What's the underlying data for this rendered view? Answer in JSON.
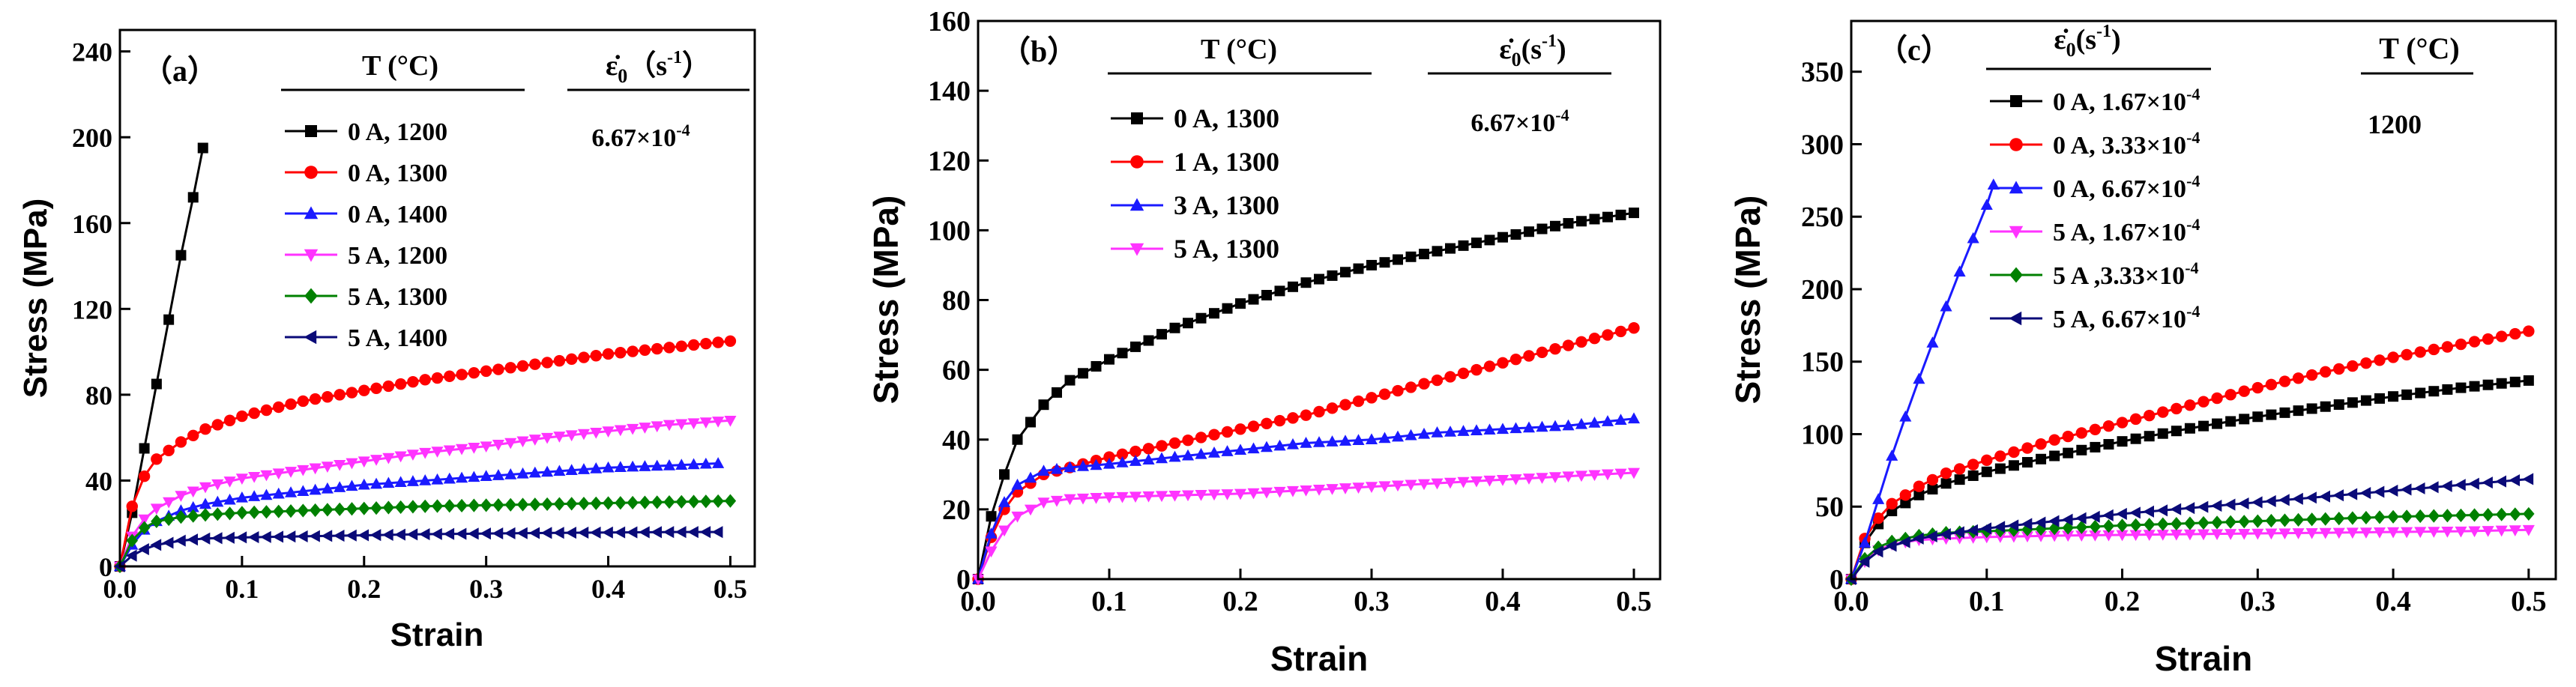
{
  "colors": {
    "black": "#000000",
    "red": "#ff0000",
    "blue": "#1a1aff",
    "magenta": "#ff33ff",
    "green": "#008000",
    "navy": "#0a0a78"
  },
  "chart_data": [
    {
      "type": "line",
      "panel_label": "（a）",
      "xlabel": "Strain",
      "ylabel": "Stress (MPa)",
      "xlim": [
        0,
        0.52
      ],
      "ylim": [
        0,
        250
      ],
      "xticks": [
        "0.0",
        "0.1",
        "0.2",
        "0.3",
        "0.4",
        "0.5"
      ],
      "yticks": [
        "0",
        "40",
        "80",
        "120",
        "160",
        "200",
        "240"
      ],
      "xtick_values": [
        0,
        0.1,
        0.2,
        0.3,
        0.4,
        0.5
      ],
      "ytick_values": [
        0,
        40,
        80,
        120,
        160,
        200,
        240
      ],
      "legend_title_left": "T  (°C)",
      "legend_title_right_base": "ε̇",
      "legend_title_right_sub": "0",
      "legend_title_right_unit": "（s",
      "legend_title_right_sup": "-1",
      "legend_title_right_close": "）",
      "legend_value_base": "6.67×10",
      "legend_value_sup": "-4",
      "series": [
        {
          "name": "0 A, 1200",
          "marker": "square",
          "color": "#000000",
          "x": [
            0,
            0.01,
            0.02,
            0.03,
            0.04,
            0.05,
            0.06,
            0.068
          ],
          "y": [
            0,
            25,
            55,
            85,
            115,
            145,
            172,
            195
          ]
        },
        {
          "name": "0 A, 1300",
          "marker": "circle",
          "color": "#ff0000",
          "x": [
            0,
            0.01,
            0.02,
            0.03,
            0.05,
            0.07,
            0.1,
            0.15,
            0.2,
            0.25,
            0.3,
            0.35,
            0.4,
            0.45,
            0.5
          ],
          "y": [
            0,
            28,
            42,
            50,
            58,
            64,
            70,
            77,
            82,
            87,
            91,
            95,
            99,
            102,
            105
          ]
        },
        {
          "name": "0 A, 1400",
          "marker": "triangle-up",
          "color": "#1a1aff",
          "x": [
            0,
            0.01,
            0.02,
            0.03,
            0.05,
            0.07,
            0.1,
            0.15,
            0.2,
            0.25,
            0.3,
            0.35,
            0.4,
            0.45,
            0.49
          ],
          "y": [
            0,
            10,
            17,
            21,
            26,
            29,
            32,
            35,
            38,
            40,
            42,
            44,
            46,
            47,
            48
          ]
        },
        {
          "name": "5 A, 1200",
          "marker": "triangle-down",
          "color": "#ff33ff",
          "x": [
            0,
            0.01,
            0.02,
            0.03,
            0.05,
            0.07,
            0.1,
            0.15,
            0.2,
            0.25,
            0.3,
            0.35,
            0.4,
            0.45,
            0.5
          ],
          "y": [
            0,
            14,
            22,
            27,
            33,
            37,
            41,
            45,
            49,
            53,
            56,
            60,
            63,
            66,
            68
          ]
        },
        {
          "name": "5 A, 1300",
          "marker": "diamond",
          "color": "#008000",
          "x": [
            0,
            0.01,
            0.02,
            0.03,
            0.05,
            0.07,
            0.1,
            0.15,
            0.2,
            0.25,
            0.3,
            0.35,
            0.4,
            0.45,
            0.5
          ],
          "y": [
            0,
            12,
            18,
            21,
            23,
            24,
            25,
            26,
            27,
            28,
            28.5,
            29,
            29.5,
            30,
            30.5
          ]
        },
        {
          "name": "5 A, 1400",
          "marker": "triangle-left",
          "color": "#0a0a78",
          "x": [
            0,
            0.01,
            0.02,
            0.03,
            0.05,
            0.07,
            0.1,
            0.15,
            0.2,
            0.25,
            0.3,
            0.35,
            0.4,
            0.45,
            0.49
          ],
          "y": [
            0,
            5,
            8,
            10,
            12,
            13,
            13.5,
            14,
            14.5,
            15,
            15.3,
            15.6,
            15.8,
            16,
            16
          ]
        }
      ]
    },
    {
      "type": "line",
      "panel_label": "（b）",
      "xlabel": "Strain",
      "ylabel": "Stress (MPa)",
      "xlim": [
        0,
        0.52
      ],
      "ylim": [
        0,
        160
      ],
      "xticks": [
        "0.0",
        "0.1",
        "0.2",
        "0.3",
        "0.4",
        "0.5"
      ],
      "yticks": [
        "0",
        "20",
        "40",
        "60",
        "80",
        "100",
        "120",
        "140",
        "160"
      ],
      "xtick_values": [
        0,
        0.1,
        0.2,
        0.3,
        0.4,
        0.5
      ],
      "ytick_values": [
        0,
        20,
        40,
        60,
        80,
        100,
        120,
        140,
        160
      ],
      "legend_title_left": "T  (°C)",
      "legend_title_right_base": "ε̇",
      "legend_title_right_sub": "0",
      "legend_title_right_unit": "(s",
      "legend_title_right_sup": "-1",
      "legend_title_right_close": ")",
      "legend_value_base": "6.67×10",
      "legend_value_sup": "-4",
      "series": [
        {
          "name": "0 A, 1300",
          "marker": "square",
          "color": "#000000",
          "x": [
            0,
            0.01,
            0.02,
            0.03,
            0.05,
            0.07,
            0.1,
            0.15,
            0.2,
            0.25,
            0.3,
            0.35,
            0.4,
            0.45,
            0.5
          ],
          "y": [
            0,
            18,
            30,
            40,
            50,
            57,
            63,
            72,
            79,
            85,
            90,
            94,
            98,
            102,
            105
          ]
        },
        {
          "name": "1 A, 1300",
          "marker": "circle",
          "color": "#ff0000",
          "x": [
            0,
            0.01,
            0.02,
            0.03,
            0.05,
            0.07,
            0.1,
            0.15,
            0.2,
            0.25,
            0.3,
            0.35,
            0.4,
            0.45,
            0.5
          ],
          "y": [
            0,
            12,
            20,
            25,
            30,
            32,
            35,
            39,
            43,
            47,
            52,
            57,
            62,
            67,
            72
          ]
        },
        {
          "name": "3 A, 1300",
          "marker": "triangle-up",
          "color": "#1a1aff",
          "x": [
            0,
            0.01,
            0.02,
            0.03,
            0.05,
            0.07,
            0.1,
            0.15,
            0.2,
            0.25,
            0.3,
            0.35,
            0.4,
            0.45,
            0.5
          ],
          "y": [
            0,
            13,
            22,
            27,
            31,
            32,
            33,
            35,
            37,
            39,
            40,
            42,
            43,
            44,
            46
          ]
        },
        {
          "name": "5 A, 1300",
          "marker": "triangle-down",
          "color": "#ff33ff",
          "x": [
            0,
            0.01,
            0.02,
            0.03,
            0.05,
            0.07,
            0.1,
            0.15,
            0.2,
            0.25,
            0.3,
            0.35,
            0.4,
            0.45,
            0.5
          ],
          "y": [
            0,
            8,
            14,
            18,
            22,
            23,
            23.5,
            24,
            24.5,
            25.5,
            26.5,
            27.5,
            28.5,
            29.5,
            30.5
          ]
        }
      ]
    },
    {
      "type": "line",
      "panel_label": "（c）",
      "xlabel": "Strain",
      "ylabel": "Stress (MPa)",
      "xlim": [
        0,
        0.52
      ],
      "ylim": [
        0,
        385
      ],
      "xticks": [
        "0.0",
        "0.1",
        "0.2",
        "0.3",
        "0.4",
        "0.5"
      ],
      "yticks": [
        "0",
        "50",
        "100",
        "150",
        "200",
        "250",
        "300",
        "350"
      ],
      "xtick_values": [
        0,
        0.1,
        0.2,
        0.3,
        0.4,
        0.5
      ],
      "ytick_values": [
        0,
        50,
        100,
        150,
        200,
        250,
        300,
        350
      ],
      "legend_title_left_base": "ε̇",
      "legend_title_left_sub": "0",
      "legend_title_left_unit": "(s",
      "legend_title_left_sup": "-1",
      "legend_title_left_close": ")",
      "legend_title_right": "T (°C)",
      "legend_value": "1200",
      "series": [
        {
          "name_base": "0 A, 1.67×10",
          "name_sup": "-4",
          "marker": "square",
          "color": "#000000",
          "x": [
            0,
            0.01,
            0.02,
            0.03,
            0.05,
            0.07,
            0.1,
            0.15,
            0.2,
            0.25,
            0.3,
            0.35,
            0.4,
            0.45,
            0.5
          ],
          "y": [
            0,
            25,
            38,
            47,
            58,
            66,
            74,
            85,
            95,
            104,
            112,
            119,
            126,
            132,
            137
          ]
        },
        {
          "name_base": "0 A, 3.33×10",
          "name_sup": "-4",
          "marker": "circle",
          "color": "#ff0000",
          "x": [
            0,
            0.01,
            0.02,
            0.03,
            0.05,
            0.07,
            0.1,
            0.15,
            0.2,
            0.25,
            0.3,
            0.35,
            0.4,
            0.45,
            0.5
          ],
          "y": [
            0,
            28,
            42,
            52,
            64,
            73,
            82,
            96,
            108,
            120,
            132,
            143,
            153,
            162,
            171
          ]
        },
        {
          "name_base": "0 A, 6.67×10",
          "name_sup": "-4",
          "marker": "triangle-up",
          "color": "#1a1aff",
          "x": [
            0,
            0.01,
            0.02,
            0.03,
            0.04,
            0.05,
            0.06,
            0.07,
            0.08,
            0.09,
            0.1,
            0.105
          ],
          "y": [
            0,
            25,
            55,
            85,
            112,
            138,
            163,
            188,
            212,
            235,
            258,
            272
          ]
        },
        {
          "name_base": "5 A, 1.67×10",
          "name_sup": "-4",
          "marker": "triangle-down",
          "color": "#ff33ff",
          "x": [
            0,
            0.01,
            0.02,
            0.03,
            0.05,
            0.07,
            0.1,
            0.15,
            0.2,
            0.25,
            0.3,
            0.35,
            0.4,
            0.45,
            0.5
          ],
          "y": [
            0,
            12,
            20,
            24,
            27,
            28,
            29,
            30,
            30.5,
            31,
            31.5,
            32,
            32.5,
            33,
            34
          ]
        },
        {
          "name_base": "5 A ,3.33×10",
          "name_sup": "-4",
          "marker": "diamond",
          "color": "#008000",
          "x": [
            0,
            0.01,
            0.02,
            0.03,
            0.05,
            0.07,
            0.1,
            0.15,
            0.2,
            0.25,
            0.3,
            0.35,
            0.4,
            0.45,
            0.5
          ],
          "y": [
            0,
            14,
            22,
            26,
            30,
            32,
            33,
            35,
            37,
            38.5,
            40,
            41.5,
            43,
            44,
            45
          ]
        },
        {
          "name_base": "5 A, 6.67×10",
          "name_sup": "-4",
          "marker": "triangle-left",
          "color": "#0a0a78",
          "x": [
            0,
            0.01,
            0.02,
            0.03,
            0.05,
            0.07,
            0.1,
            0.15,
            0.2,
            0.25,
            0.3,
            0.35,
            0.4,
            0.45,
            0.5
          ],
          "y": [
            0,
            12,
            19,
            23,
            28,
            31,
            35,
            40,
            45,
            49,
            53,
            57,
            61,
            65,
            69
          ]
        }
      ]
    }
  ]
}
